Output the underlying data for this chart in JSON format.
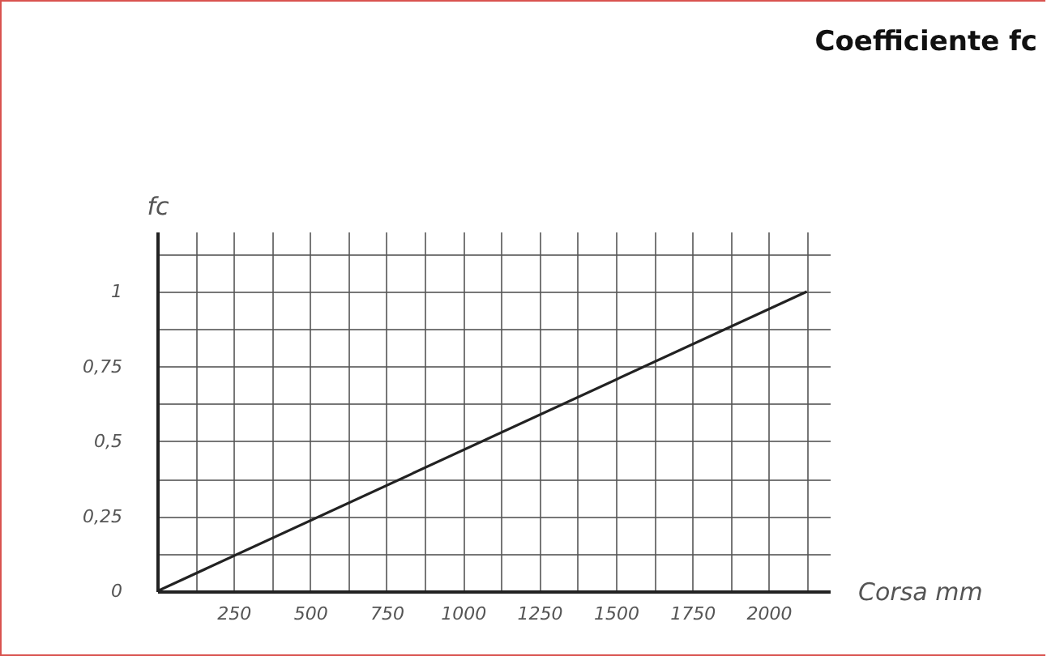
{
  "chart_data": {
    "type": "line",
    "title": "Coefficiente fc",
    "xlabel": "Corsa mm",
    "ylabel": "fc",
    "x": [
      0,
      2125
    ],
    "series": [
      {
        "color": "#222222",
        "values": [
          0,
          1
        ]
      }
    ],
    "xlim": [
      0,
      2200
    ],
    "ylim": [
      0,
      1.2
    ],
    "xticks": [
      {
        "value": 0,
        "label": null
      },
      {
        "value": 125,
        "label": null
      },
      250,
      {
        "value": 375,
        "label": null
      },
      500,
      {
        "value": 625,
        "label": null
      },
      750,
      {
        "value": 875,
        "label": null
      },
      1000,
      {
        "value": 1125,
        "label": null
      },
      1250,
      {
        "value": 1375,
        "label": null
      },
      1500,
      {
        "value": 1625,
        "label": null
      },
      1750,
      {
        "value": 1875,
        "label": null
      },
      2000,
      {
        "value": 2125,
        "label": null
      }
    ],
    "yticks": [
      {
        "value": 0,
        "label": "0"
      },
      {
        "value": 0.125,
        "label": null
      },
      {
        "value": 0.25,
        "label": "0,25"
      },
      {
        "value": 0.375,
        "label": null
      },
      {
        "value": 0.5,
        "label": "0,5"
      },
      {
        "value": 0.625,
        "label": null
      },
      {
        "value": 0.75,
        "label": "0,75"
      },
      {
        "value": 0.875,
        "label": null
      },
      {
        "value": 1,
        "label": "1"
      },
      {
        "value": 1.125,
        "label": null
      }
    ],
    "grid": true,
    "legend": false,
    "marker": "none",
    "line_style": "solid"
  }
}
